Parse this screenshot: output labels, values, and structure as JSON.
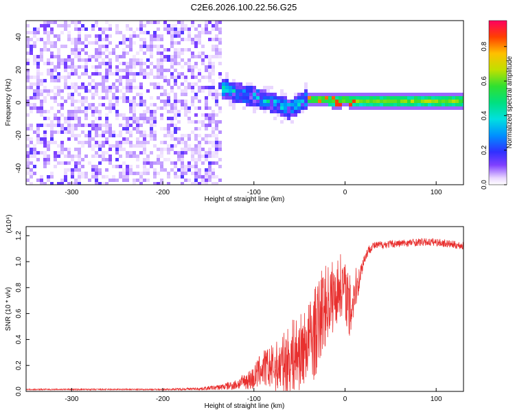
{
  "chart_data": [
    {
      "type": "heatmap",
      "title": "C2E6.2026.100.22.56.G25",
      "xlabel": "Height of straight line (km)",
      "ylabel": "Frequency (Hz)",
      "xlim": [
        -350,
        130
      ],
      "ylim": [
        -50,
        50
      ],
      "x_ticks": [
        -300,
        -200,
        -100,
        0,
        100
      ],
      "y_ticks": [
        -40,
        -20,
        0,
        20,
        40
      ],
      "colorbar": {
        "label": "Normalized spectral amplitude",
        "range": [
          0,
          0.95
        ],
        "ticks": [
          0.0,
          0.2,
          0.4,
          0.6,
          0.8
        ]
      },
      "regions": [
        {
          "name": "noise",
          "x_range": [
            -350,
            -135
          ],
          "freq_range": [
            -50,
            50
          ],
          "amplitude_range": [
            0.0,
            0.12
          ]
        },
        {
          "name": "transition",
          "x_range": [
            -135,
            -40
          ],
          "freq_range": [
            -8,
            12
          ],
          "amplitude_range": [
            0.1,
            0.5
          ]
        },
        {
          "name": "carrier",
          "x_range": [
            -40,
            130
          ],
          "freq_center": 1.0,
          "freq_halfwidth": 3,
          "amplitude_range": [
            0.35,
            0.95
          ]
        }
      ],
      "ridge": {
        "x": [
          -135,
          -120,
          -100,
          -90,
          -80,
          -70,
          -60,
          -50,
          -40,
          -30,
          -20,
          -10,
          0,
          10,
          20,
          60,
          100,
          130
        ],
        "freq": [
          9,
          6,
          4,
          2,
          0,
          -2,
          -4,
          0,
          2,
          2,
          2,
          1,
          2,
          1,
          1,
          1,
          1,
          1
        ]
      }
    },
    {
      "type": "line",
      "xlabel": "Height of straight line (km)",
      "ylabel": "SNR (10 * v/v)",
      "scale_label": "(x10⁴)",
      "xlim": [
        -350,
        130
      ],
      "ylim": [
        0,
        1.27
      ],
      "x_ticks": [
        -300,
        -200,
        -100,
        0,
        100
      ],
      "y_ticks": [
        "0.0",
        "0.2",
        "0.4",
        "0.6",
        "0.8",
        "1.0",
        "1.2"
      ],
      "series": [
        {
          "name": "SNR",
          "color": "#e8302f",
          "x": [
            -350,
            -300,
            -250,
            -200,
            -160,
            -140,
            -120,
            -110,
            -100,
            -95,
            -90,
            -80,
            -70,
            -60,
            -55,
            -50,
            -45,
            -40,
            -35,
            -30,
            -25,
            -20,
            -15,
            -10,
            -5,
            0,
            5,
            10,
            15,
            20,
            25,
            30,
            40,
            60,
            80,
            100,
            120,
            130
          ],
          "values": [
            0.015,
            0.015,
            0.015,
            0.015,
            0.02,
            0.03,
            0.05,
            0.08,
            0.1,
            0.15,
            0.18,
            0.18,
            0.2,
            0.25,
            0.28,
            0.3,
            0.33,
            0.4,
            0.42,
            0.5,
            0.62,
            0.68,
            0.72,
            0.75,
            0.82,
            0.8,
            0.6,
            0.76,
            0.85,
            1.0,
            1.08,
            1.12,
            1.13,
            1.14,
            1.15,
            1.15,
            1.13,
            1.12
          ],
          "noise_envelope": [
            0.005,
            0.005,
            0.005,
            0.005,
            0.01,
            0.02,
            0.04,
            0.06,
            0.1,
            0.12,
            0.14,
            0.18,
            0.22,
            0.28,
            0.3,
            0.3,
            0.28,
            0.3,
            0.35,
            0.35,
            0.35,
            0.3,
            0.3,
            0.25,
            0.25,
            0.2,
            0.3,
            0.2,
            0.1,
            0.05,
            0.04,
            0.03,
            0.03,
            0.03,
            0.03,
            0.03,
            0.03,
            0.03
          ]
        }
      ]
    }
  ]
}
